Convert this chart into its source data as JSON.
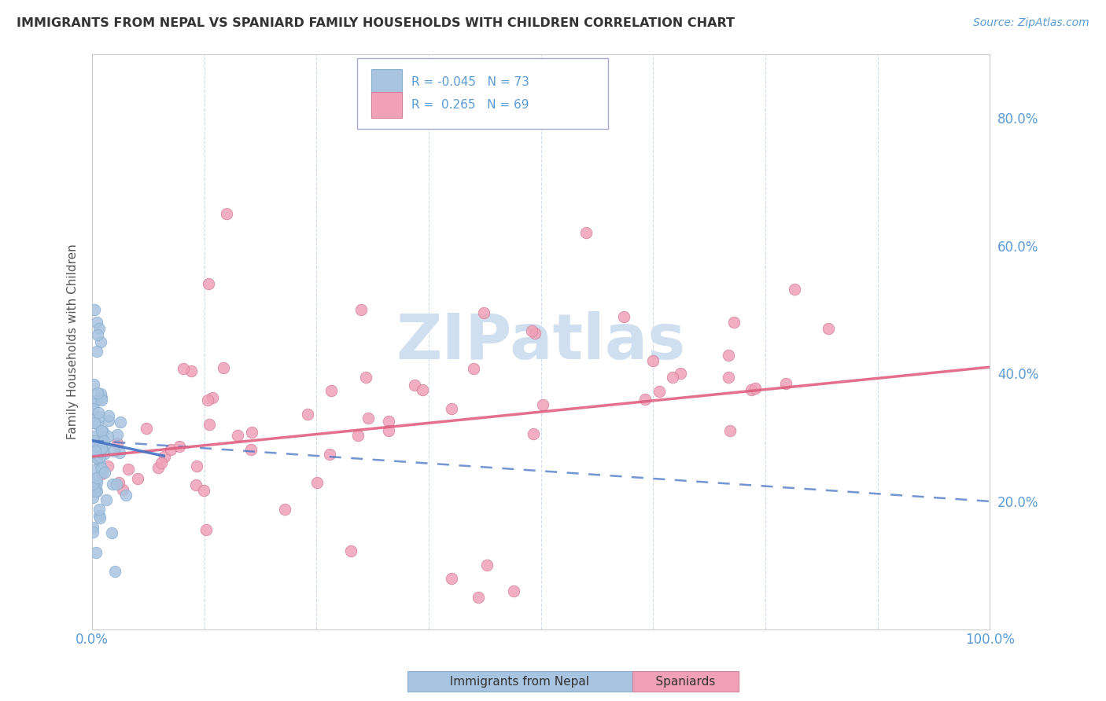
{
  "title": "IMMIGRANTS FROM NEPAL VS SPANIARD FAMILY HOUSEHOLDS WITH CHILDREN CORRELATION CHART",
  "source": "Source: ZipAtlas.com",
  "ylabel": "Family Households with Children",
  "legend_label1": "Immigrants from Nepal",
  "legend_label2": "Spaniards",
  "R1": -0.045,
  "N1": 73,
  "R2": 0.265,
  "N2": 69,
  "color_nepal": "#a8c4e0",
  "color_spain": "#f0a0b8",
  "color_line_nepal": "#4472c4",
  "color_line_spain": "#e06080",
  "title_color": "#333333",
  "source_color": "#5b9bd5",
  "tick_color": "#5b9bd5",
  "ylabel_color": "#555555",
  "grid_color": "#c8d4e8",
  "watermark_color": "#d0dff0",
  "bg_color": "#ffffff",
  "xlim": [
    0,
    100
  ],
  "ylim": [
    0,
    90
  ],
  "ytick_vals": [
    20,
    40,
    60,
    80
  ],
  "ytick_labels": [
    "20.0%",
    "40.0%",
    "60.0%",
    "80.0%"
  ],
  "xtick_edge_left": "0.0%",
  "xtick_edge_right": "100.0%"
}
